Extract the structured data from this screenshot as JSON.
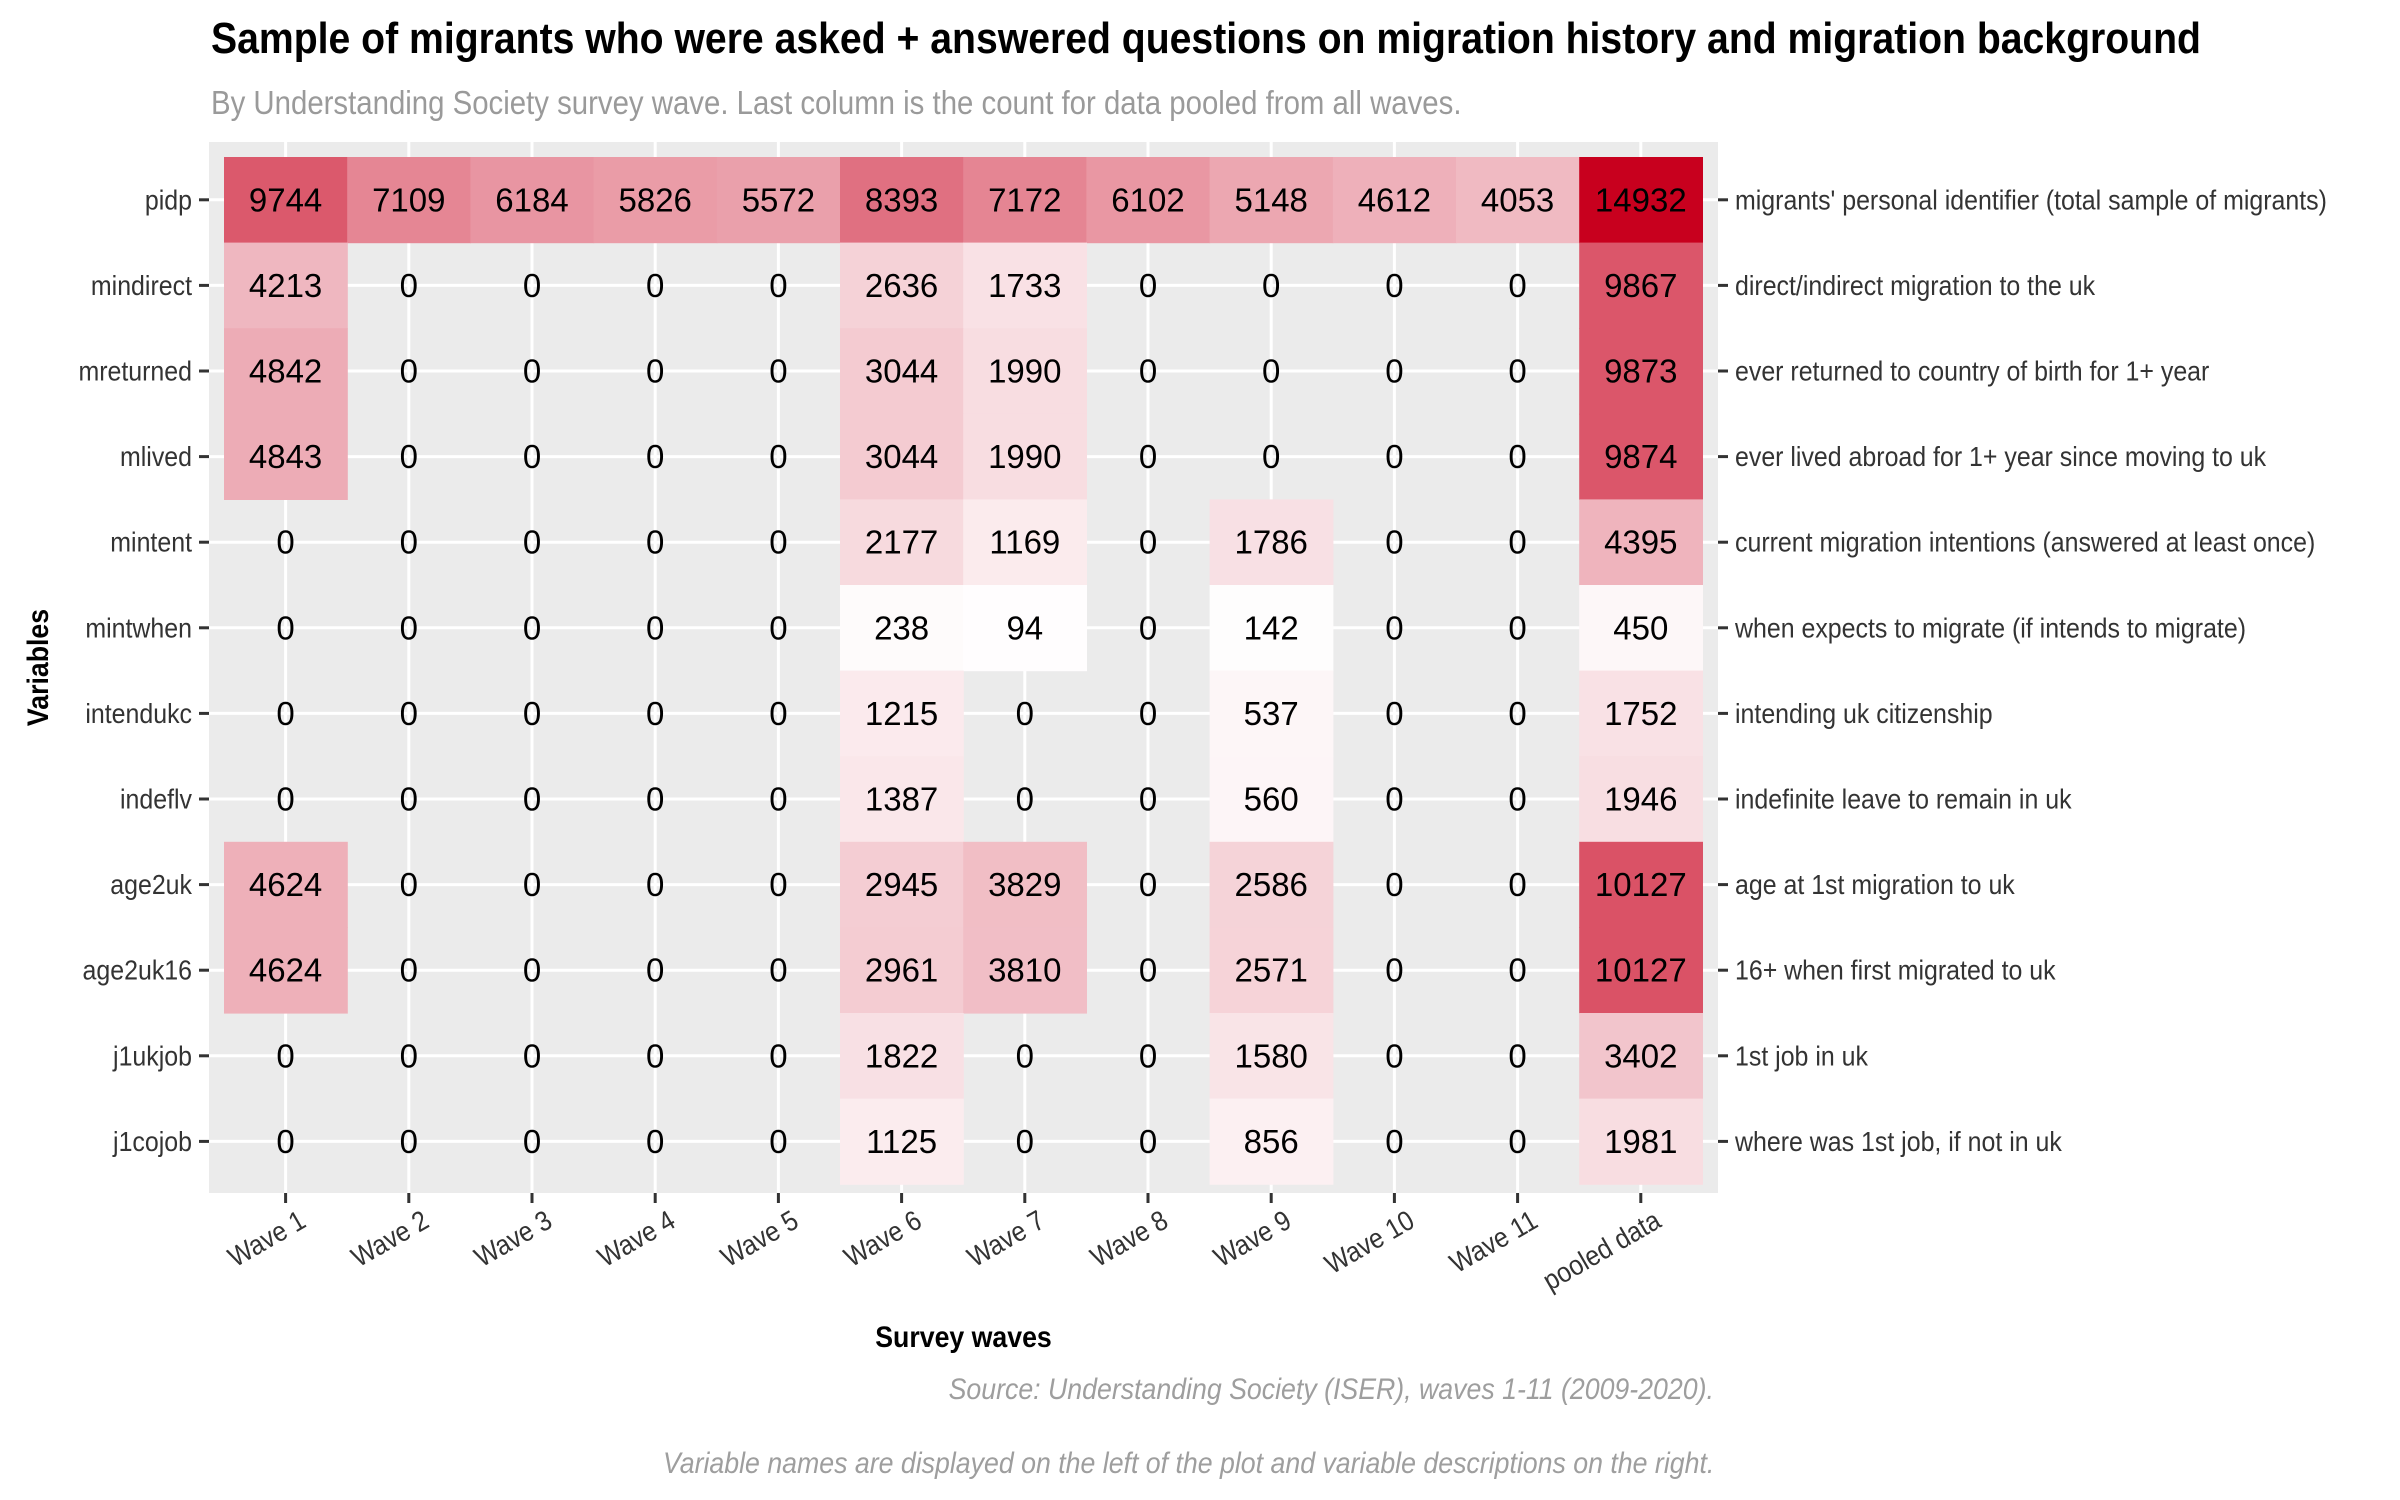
{
  "title": "Sample of migrants who were asked + answered questions on migration history and migration background",
  "subtitle": "By Understanding Society survey wave. Last column is the count for data pooled from all waves.",
  "caption": {
    "source": "Source: Understanding Society (ISER), waves 1-11 (2009-2020).",
    "note": "Variable names are displayed on the left of the plot and variable descriptions on the right."
  },
  "colors": {
    "panel_background": "#ebebeb",
    "low": "#ffffff",
    "high": "#c8001e",
    "tick": "#333333",
    "axis_title": "#000000"
  },
  "chart_data": {
    "type": "heatmap",
    "xlabel": "Survey waves",
    "ylabel": "Variables",
    "x_categories": [
      "Wave 1",
      "Wave 2",
      "Wave 3",
      "Wave 4",
      "Wave 5",
      "Wave 6",
      "Wave 7",
      "Wave 8",
      "Wave 9",
      "Wave 10",
      "Wave 11",
      "pooled data"
    ],
    "y_categories": [
      "pidp",
      "mindirect",
      "mreturned",
      "mlived",
      "mintent",
      "mintwhen",
      "intendukc",
      "indeflv",
      "age2uk",
      "age2uk16",
      "j1ukjob",
      "j1cojob"
    ],
    "y_descriptions": [
      "migrants' personal identifier (total sample of migrants)",
      "direct/indirect migration to the uk",
      "ever returned to country of birth for 1+ year",
      "ever lived abroad for 1+ year since moving to uk",
      "current migration intentions (answered at least once)",
      "when expects to migrate (if intends to migrate)",
      "intending uk citizenship",
      "indefinite leave to remain in uk",
      "age at 1st migration to uk",
      "16+ when first migrated to uk",
      "1st job in uk",
      "where was 1st job, if not in uk"
    ],
    "values": [
      [
        9744,
        7109,
        6184,
        5826,
        5572,
        8393,
        7172,
        6102,
        5148,
        4612,
        4053,
        14932
      ],
      [
        4213,
        0,
        0,
        0,
        0,
        2636,
        1733,
        0,
        0,
        0,
        0,
        9867
      ],
      [
        4842,
        0,
        0,
        0,
        0,
        3044,
        1990,
        0,
        0,
        0,
        0,
        9873
      ],
      [
        4843,
        0,
        0,
        0,
        0,
        3044,
        1990,
        0,
        0,
        0,
        0,
        9874
      ],
      [
        0,
        0,
        0,
        0,
        0,
        2177,
        1169,
        0,
        1786,
        0,
        0,
        4395
      ],
      [
        0,
        0,
        0,
        0,
        0,
        238,
        94,
        0,
        142,
        0,
        0,
        450
      ],
      [
        0,
        0,
        0,
        0,
        0,
        1215,
        0,
        0,
        537,
        0,
        0,
        1752
      ],
      [
        0,
        0,
        0,
        0,
        0,
        1387,
        0,
        0,
        560,
        0,
        0,
        1946
      ],
      [
        4624,
        0,
        0,
        0,
        0,
        2945,
        3829,
        0,
        2586,
        0,
        0,
        10127
      ],
      [
        4624,
        0,
        0,
        0,
        0,
        2961,
        3810,
        0,
        2571,
        0,
        0,
        10127
      ],
      [
        0,
        0,
        0,
        0,
        0,
        1822,
        0,
        0,
        1580,
        0,
        0,
        3402
      ],
      [
        0,
        0,
        0,
        0,
        0,
        1125,
        0,
        0,
        856,
        0,
        0,
        1981
      ]
    ],
    "color_scale": {
      "min": 0,
      "max": 14932,
      "low": "#ffffff",
      "high": "#c8001e"
    },
    "grid": true,
    "legend": "none"
  }
}
